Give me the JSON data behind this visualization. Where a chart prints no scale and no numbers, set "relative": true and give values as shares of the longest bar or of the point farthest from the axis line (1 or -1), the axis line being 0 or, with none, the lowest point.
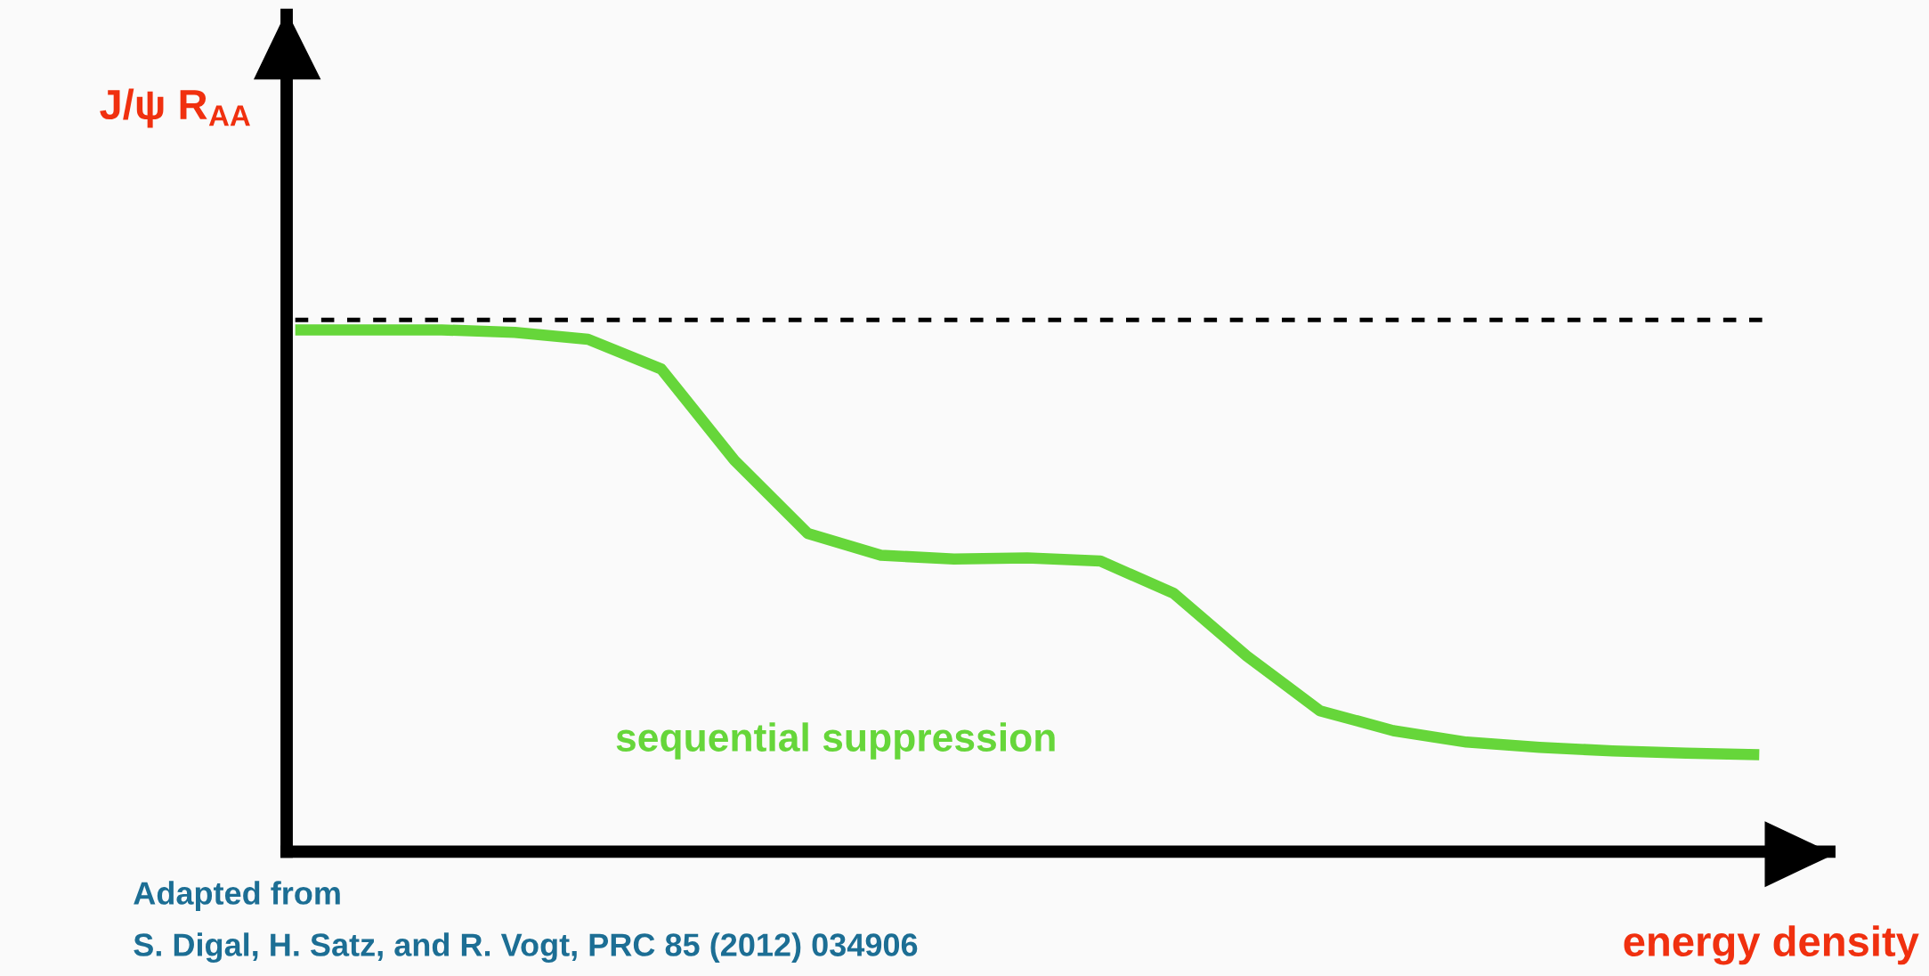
{
  "chart_data": {
    "type": "line",
    "relative": true,
    "ylabel": "J/ψ R$_{AA}$",
    "xlabel": "energy density",
    "categories": [
      null,
      null,
      null,
      null,
      null,
      null,
      null,
      null,
      null,
      null,
      null,
      null,
      null,
      null,
      null,
      null,
      null,
      null,
      null,
      null,
      null
    ],
    "series": [
      {
        "color": "#66d63a",
        "values": [
          1.0,
          1.0,
          1.0,
          0.995,
          0.982,
          0.925,
          0.75,
          0.61,
          0.568,
          0.561,
          0.563,
          0.557,
          0.495,
          0.375,
          0.27,
          0.232,
          0.21,
          0.2,
          0.193,
          0.189,
          0.186
        ]
      }
    ],
    "ref_lines": [
      {
        "axis": "y",
        "value": 1.019,
        "color": "#000000",
        "line_style": "dashed"
      }
    ],
    "annotations": [
      "sequential suppression",
      "Adapted from",
      "S. Digal, H. Satz, and R. Vogt, PRC 85 (2012) 034906"
    ]
  }
}
